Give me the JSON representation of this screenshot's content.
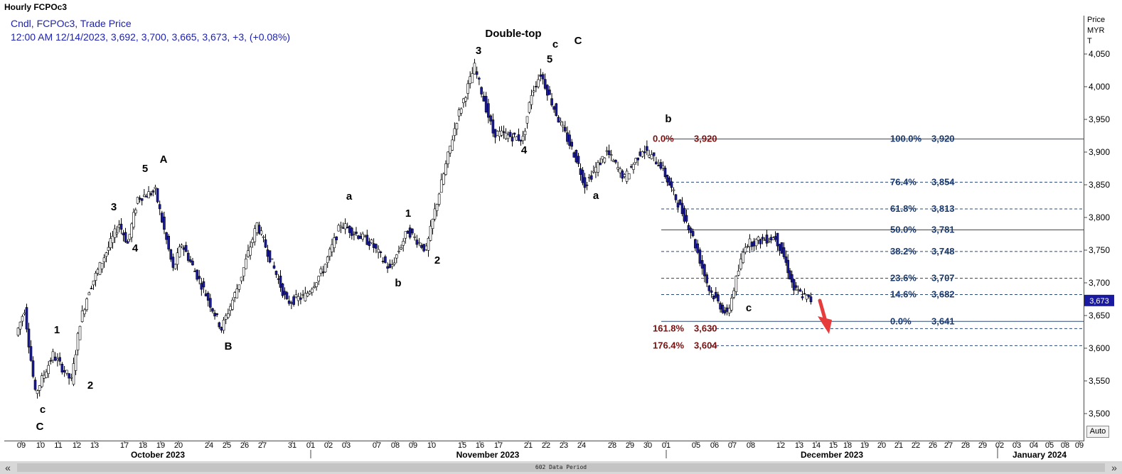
{
  "window": {
    "title": "Hourly FCPOc3"
  },
  "info": {
    "line1": "Cndl, FCPOc3, Trade Price",
    "line2": "12:00 AM 12/14/2023, 3,692, 3,700, 3,665, 3,673, +3, (+0.08%)"
  },
  "price_axis": {
    "header": [
      "Price",
      "MYR",
      "T"
    ],
    "ticks": [
      "4,050",
      "4,000",
      "3,950",
      "3,900",
      "3,850",
      "3,800",
      "3,750",
      "3,700",
      "3,650",
      "3,600",
      "3,550",
      "3,500"
    ],
    "last_price_label": "3,673",
    "last_price_color": "#1a1aa0"
  },
  "buttons": {
    "auto": "Auto"
  },
  "scrollbar": {
    "left_icon": "«",
    "right_icon": "»",
    "label": "602 Data Period"
  },
  "time_axis": {
    "day_labels": [
      "09",
      "10",
      "11",
      "12",
      "13",
      "17",
      "18",
      "19",
      "20",
      "24",
      "25",
      "26",
      "27",
      "31",
      "01",
      "02",
      "03",
      "07",
      "08",
      "09",
      "10",
      "15",
      "16",
      "17",
      "21",
      "22",
      "23",
      "24",
      "28",
      "29",
      "30",
      "01",
      "05",
      "06",
      "07",
      "08",
      "12",
      "13",
      "14",
      "15",
      "18",
      "19",
      "20",
      "21",
      "22",
      "26",
      "27",
      "28",
      "29",
      "02",
      "03",
      "04",
      "05",
      "08",
      "09"
    ],
    "month_labels": [
      "October 2023",
      "November 2023",
      "December 2023",
      "January 2024"
    ]
  },
  "wave_labels": [
    {
      "text": "Double-top"
    },
    {
      "text": "A"
    },
    {
      "text": "5"
    },
    {
      "text": "3"
    },
    {
      "text": "4"
    },
    {
      "text": "B"
    },
    {
      "text": "1"
    },
    {
      "text": "2"
    },
    {
      "text": "c"
    },
    {
      "text": "C"
    },
    {
      "text": "a"
    },
    {
      "text": "1"
    },
    {
      "text": "b"
    },
    {
      "text": "2"
    },
    {
      "text": "3"
    },
    {
      "text": "4"
    },
    {
      "text": "5"
    },
    {
      "text": "c"
    },
    {
      "text": "C"
    },
    {
      "text": "b"
    },
    {
      "text": "a"
    },
    {
      "text": "c"
    }
  ],
  "fib_labels": [
    {
      "text": "0.0%",
      "value": "3,920",
      "color": "#7a1010"
    },
    {
      "text": "100.0%",
      "value": "3,920",
      "color": "#1a3a6e"
    },
    {
      "text": "76.4%",
      "value": "3,854",
      "color": "#1a3a6e"
    },
    {
      "text": "61.8%",
      "value": "3,813",
      "color": "#1a3a6e"
    },
    {
      "text": "50.0%",
      "value": "3,781",
      "color": "#1a3a6e"
    },
    {
      "text": "38.2%",
      "value": "3,748",
      "color": "#1a3a6e"
    },
    {
      "text": "23.6%",
      "value": "3,707",
      "color": "#1a3a6e"
    },
    {
      "text": "14.6%",
      "value": "3,682",
      "color": "#1a3a6e"
    },
    {
      "text": "0.0%",
      "value": "3,641",
      "color": "#1a3a6e"
    },
    {
      "text": "161.8%",
      "value": "3,630",
      "color": "#7a1010"
    },
    {
      "text": "176.4%",
      "value": "3,604",
      "color": "#7a1010"
    }
  ],
  "colors": {
    "up_candle": "#ffffff",
    "down_candle": "#1a1aa0",
    "candle_border": "#000000",
    "fib_line": "#2a4a7a",
    "arrow": "#e63c3c"
  },
  "chart_data": {
    "type": "candlestick",
    "instrument": "FCPOc3",
    "interval": "Hourly",
    "ylim": [
      3480,
      4090
    ],
    "path_points": [
      {
        "x": "09 Oct",
        "y": 3620
      },
      {
        "x": "09 Oct",
        "y": 3660
      },
      {
        "x": "10 Oct",
        "y": 3530
      },
      {
        "x": "11 Oct",
        "y": 3590
      },
      {
        "x": "12 Oct",
        "y": 3550
      },
      {
        "x": "12 Oct",
        "y": 3640
      },
      {
        "x": "13 Oct",
        "y": 3690
      },
      {
        "x": "17 Oct",
        "y": 3790
      },
      {
        "x": "17 Oct",
        "y": 3760
      },
      {
        "x": "18 Oct",
        "y": 3830
      },
      {
        "x": "19 Oct",
        "y": 3840
      },
      {
        "x": "20 Oct",
        "y": 3720
      },
      {
        "x": "20 Oct",
        "y": 3760
      },
      {
        "x": "24 Oct",
        "y": 3690
      },
      {
        "x": "25 Oct",
        "y": 3630
      },
      {
        "x": "26 Oct",
        "y": 3700
      },
      {
        "x": "27 Oct",
        "y": 3790
      },
      {
        "x": "31 Oct",
        "y": 3670
      },
      {
        "x": "01 Nov",
        "y": 3680
      },
      {
        "x": "02 Nov",
        "y": 3720
      },
      {
        "x": "03 Nov",
        "y": 3790
      },
      {
        "x": "07 Nov",
        "y": 3760
      },
      {
        "x": "08 Nov",
        "y": 3720
      },
      {
        "x": "09 Nov",
        "y": 3780
      },
      {
        "x": "10 Nov",
        "y": 3750
      },
      {
        "x": "10 Nov",
        "y": 3810
      },
      {
        "x": "15 Nov",
        "y": 3950
      },
      {
        "x": "16 Nov",
        "y": 4030
      },
      {
        "x": "17 Nov",
        "y": 3930
      },
      {
        "x": "21 Nov",
        "y": 3920
      },
      {
        "x": "21 Nov",
        "y": 3990
      },
      {
        "x": "22 Nov",
        "y": 4020
      },
      {
        "x": "23 Nov",
        "y": 3950
      },
      {
        "x": "24 Nov",
        "y": 3890
      },
      {
        "x": "24 Nov",
        "y": 3850
      },
      {
        "x": "28 Nov",
        "y": 3900
      },
      {
        "x": "29 Nov",
        "y": 3860
      },
      {
        "x": "30 Nov",
        "y": 3905
      },
      {
        "x": "01 Dec",
        "y": 3880
      },
      {
        "x": "01 Dec",
        "y": 3850
      },
      {
        "x": "05 Dec",
        "y": 3780
      },
      {
        "x": "06 Dec",
        "y": 3690
      },
      {
        "x": "07 Dec",
        "y": 3650
      },
      {
        "x": "08 Dec",
        "y": 3760
      },
      {
        "x": "12 Dec",
        "y": 3770
      },
      {
        "x": "12 Dec",
        "y": 3740
      },
      {
        "x": "13 Dec",
        "y": 3690
      },
      {
        "x": "14 Dec",
        "y": 3673
      }
    ],
    "last_bar": {
      "date": "12/14/2023 12:00 AM",
      "open": 3692,
      "high": 3700,
      "low": 3665,
      "close": 3673,
      "change": 3,
      "change_pct": 0.08
    },
    "fib_retracement": [
      {
        "level": "100.0%",
        "price": 3920
      },
      {
        "level": "76.4%",
        "price": 3854
      },
      {
        "level": "61.8%",
        "price": 3813
      },
      {
        "level": "50.0%",
        "price": 3781
      },
      {
        "level": "38.2%",
        "price": 3748
      },
      {
        "level": "23.6%",
        "price": 3707
      },
      {
        "level": "14.6%",
        "price": 3682
      },
      {
        "level": "0.0%",
        "price": 3641
      }
    ],
    "fib_extension": [
      {
        "level": "0.0%",
        "price": 3920
      },
      {
        "level": "161.8%",
        "price": 3630
      },
      {
        "level": "176.4%",
        "price": 3604
      }
    ],
    "grid": false
  }
}
